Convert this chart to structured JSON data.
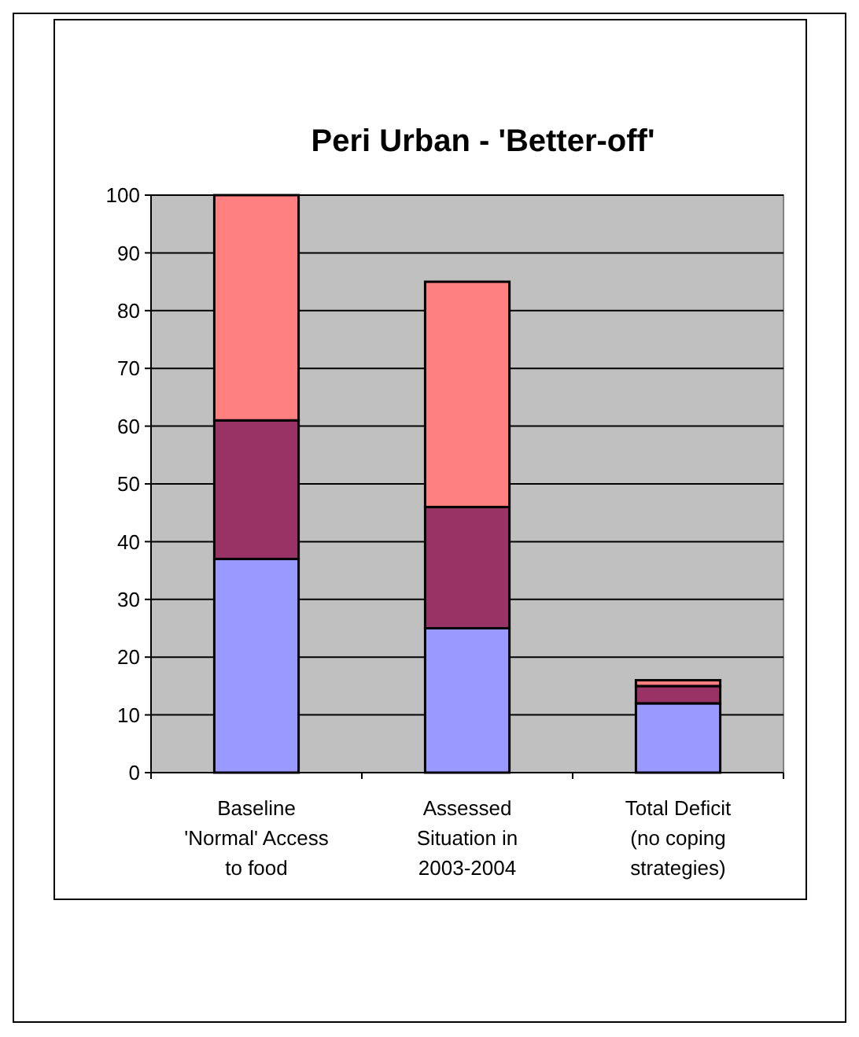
{
  "chart_data": {
    "type": "bar",
    "title": "Peri Urban - 'Better-off'",
    "categories": [
      "Baseline 'Normal' Access to food",
      "Assessed Situation in 2003-2004",
      "Total Deficit (no coping strategies)"
    ],
    "stacked": true,
    "series": [
      {
        "color": "#9999ff",
        "values": [
          37,
          25,
          12
        ]
      },
      {
        "color": "#993366",
        "values": [
          24,
          21,
          3
        ]
      },
      {
        "color": "#ff8080",
        "values": [
          39,
          39,
          1
        ]
      }
    ],
    "ylim": [
      0,
      100
    ],
    "yticks": [
      0,
      10,
      20,
      30,
      40,
      50,
      60,
      70,
      80,
      90,
      100
    ],
    "grid": "y"
  }
}
